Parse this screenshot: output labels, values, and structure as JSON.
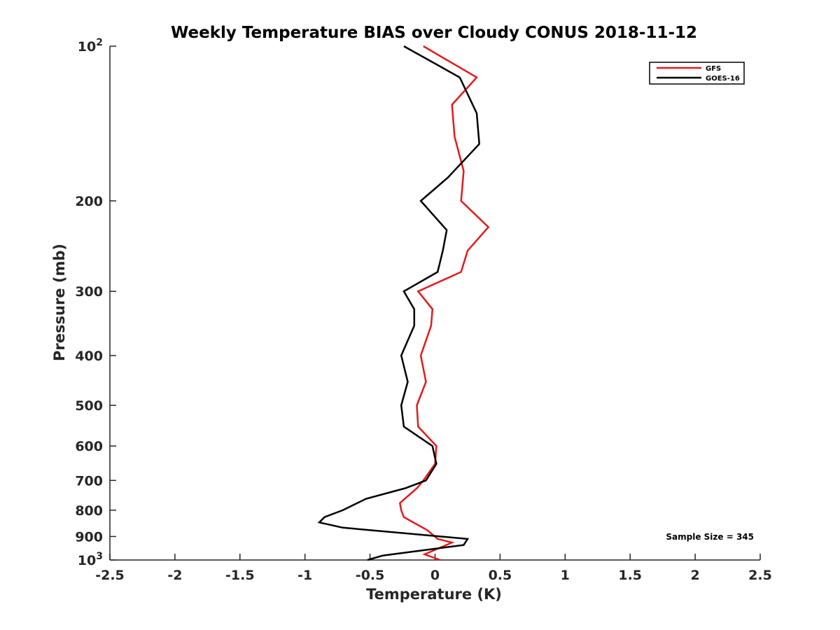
{
  "chart_data": {
    "type": "line",
    "title": "Weekly Temperature BIAS over Cloudy CONUS 2018-11-12",
    "xlabel": "Temperature (K)",
    "ylabel": "Pressure (mb)",
    "xlim": [
      -2.5,
      2.5
    ],
    "ylim": [
      100,
      1000
    ],
    "y_scale": "log",
    "y_reversed": true,
    "grid": false,
    "legend_position": "top-right",
    "x_ticks": [
      {
        "value": -2.5,
        "label": "-2.5"
      },
      {
        "value": -2,
        "label": "-2"
      },
      {
        "value": -1.5,
        "label": "-1.5"
      },
      {
        "value": -1,
        "label": "-1"
      },
      {
        "value": -0.5,
        "label": "-0.5"
      },
      {
        "value": 0,
        "label": "0"
      },
      {
        "value": 0.5,
        "label": "0.5"
      },
      {
        "value": 1,
        "label": "1"
      },
      {
        "value": 1.5,
        "label": "1.5"
      },
      {
        "value": 2,
        "label": "2"
      },
      {
        "value": 2.5,
        "label": "2.5"
      }
    ],
    "y_ticks": [
      {
        "value": 100,
        "label": "10",
        "sup": "2"
      },
      {
        "value": 200,
        "label": "200"
      },
      {
        "value": 300,
        "label": "300"
      },
      {
        "value": 400,
        "label": "400"
      },
      {
        "value": 500,
        "label": "500"
      },
      {
        "value": 600,
        "label": "600"
      },
      {
        "value": 700,
        "label": "700"
      },
      {
        "value": 800,
        "label": "800"
      },
      {
        "value": 900,
        "label": "900"
      },
      {
        "value": 1000,
        "label": "10",
        "sup": "3"
      }
    ],
    "series": [
      {
        "name": "GFS",
        "color": "#e31a1c",
        "points": [
          {
            "t": -0.09,
            "p": 100
          },
          {
            "t": 0.32,
            "p": 115
          },
          {
            "t": 0.13,
            "p": 130
          },
          {
            "t": 0.15,
            "p": 150
          },
          {
            "t": 0.22,
            "p": 175
          },
          {
            "t": 0.2,
            "p": 200
          },
          {
            "t": 0.41,
            "p": 225
          },
          {
            "t": 0.25,
            "p": 250
          },
          {
            "t": 0.2,
            "p": 275
          },
          {
            "t": -0.13,
            "p": 300
          },
          {
            "t": -0.02,
            "p": 325
          },
          {
            "t": -0.03,
            "p": 350
          },
          {
            "t": -0.11,
            "p": 400
          },
          {
            "t": -0.07,
            "p": 450
          },
          {
            "t": -0.14,
            "p": 500
          },
          {
            "t": -0.13,
            "p": 550
          },
          {
            "t": 0.01,
            "p": 600
          },
          {
            "t": 0.0,
            "p": 650
          },
          {
            "t": -0.09,
            "p": 700
          },
          {
            "t": -0.14,
            "p": 725
          },
          {
            "t": -0.27,
            "p": 775
          },
          {
            "t": -0.26,
            "p": 800
          },
          {
            "t": -0.24,
            "p": 825
          },
          {
            "t": -0.06,
            "p": 875
          },
          {
            "t": 0.02,
            "p": 910
          },
          {
            "t": 0.13,
            "p": 925
          },
          {
            "t": -0.08,
            "p": 975
          },
          {
            "t": 0.04,
            "p": 1000
          }
        ]
      },
      {
        "name": "GOES-16",
        "color": "#000000",
        "points": [
          {
            "t": -0.24,
            "p": 100
          },
          {
            "t": 0.19,
            "p": 115
          },
          {
            "t": 0.32,
            "p": 135
          },
          {
            "t": 0.34,
            "p": 155
          },
          {
            "t": 0.1,
            "p": 180
          },
          {
            "t": -0.11,
            "p": 200
          },
          {
            "t": 0.09,
            "p": 228
          },
          {
            "t": 0.06,
            "p": 250
          },
          {
            "t": 0.02,
            "p": 275
          },
          {
            "t": -0.24,
            "p": 300
          },
          {
            "t": -0.16,
            "p": 325
          },
          {
            "t": -0.16,
            "p": 350
          },
          {
            "t": -0.26,
            "p": 400
          },
          {
            "t": -0.21,
            "p": 450
          },
          {
            "t": -0.26,
            "p": 500
          },
          {
            "t": -0.24,
            "p": 550
          },
          {
            "t": -0.02,
            "p": 600
          },
          {
            "t": 0.01,
            "p": 650
          },
          {
            "t": -0.07,
            "p": 700
          },
          {
            "t": -0.23,
            "p": 725
          },
          {
            "t": -0.53,
            "p": 760
          },
          {
            "t": -0.71,
            "p": 800
          },
          {
            "t": -0.85,
            "p": 825
          },
          {
            "t": -0.89,
            "p": 845
          },
          {
            "t": -0.71,
            "p": 865
          },
          {
            "t": 0.25,
            "p": 910
          },
          {
            "t": 0.22,
            "p": 935
          },
          {
            "t": -0.4,
            "p": 980
          },
          {
            "t": -0.52,
            "p": 1000
          }
        ]
      }
    ],
    "annotations": [
      {
        "text": "Sample Size = 345",
        "position": "bottom-right"
      }
    ]
  }
}
